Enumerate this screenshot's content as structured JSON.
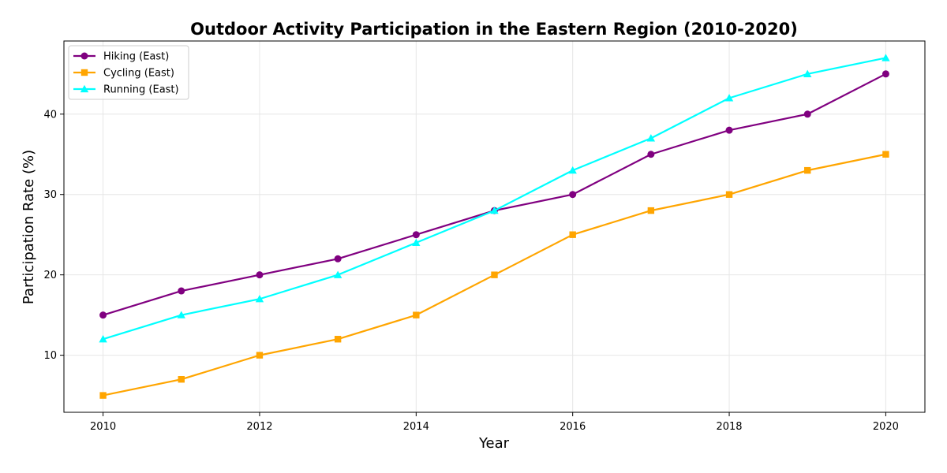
{
  "chart_data": {
    "type": "line",
    "title": "Outdoor Activity Participation in the Eastern Region (2010-2020)",
    "xlabel": "Year",
    "ylabel": "Participation Rate (%)",
    "x": [
      2010,
      2011,
      2012,
      2013,
      2014,
      2015,
      2016,
      2017,
      2018,
      2019,
      2020
    ],
    "xlim": [
      2009.5,
      2020.5
    ],
    "ylim": [
      2.9,
      49.1
    ],
    "xticks": [
      2010,
      2012,
      2014,
      2016,
      2018,
      2020
    ],
    "yticks": [
      10,
      20,
      30,
      40
    ],
    "grid": true,
    "legend_position": "top-left",
    "series": [
      {
        "name": "Hiking (East)",
        "color": "#800080",
        "marker": "circle",
        "values": [
          15,
          18,
          20,
          22,
          25,
          28,
          30,
          35,
          38,
          40,
          45
        ]
      },
      {
        "name": "Cycling (East)",
        "color": "#FFA500",
        "marker": "square",
        "values": [
          5,
          7,
          10,
          12,
          15,
          20,
          25,
          28,
          30,
          33,
          35
        ]
      },
      {
        "name": "Running (East)",
        "color": "#00FFFF",
        "marker": "triangle",
        "values": [
          12,
          15,
          17,
          20,
          24,
          28,
          33,
          37,
          42,
          45,
          47
        ]
      }
    ]
  }
}
